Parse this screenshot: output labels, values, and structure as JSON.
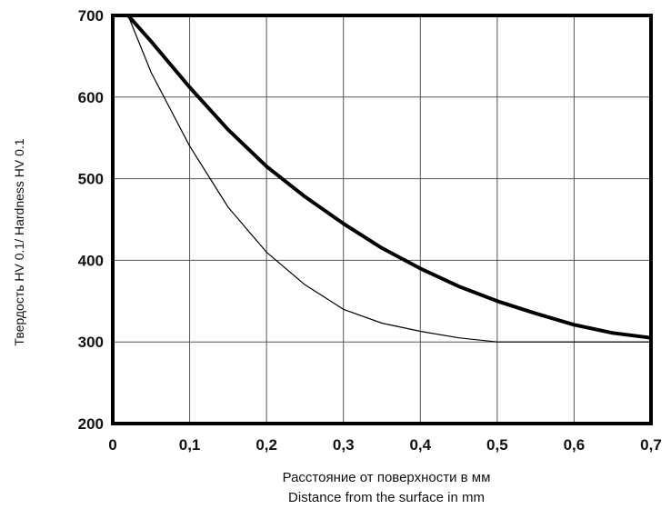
{
  "chart_data": {
    "type": "line",
    "xlabel_ru": "Расстояние от поверхности в мм",
    "xlabel_en": "Distance from the surface in mm",
    "ylabel": "Твердость HV 0.1/  Hardness HV 0.1",
    "xlim": [
      0,
      0.7
    ],
    "ylim": [
      200,
      700
    ],
    "x_ticks": [
      "0",
      "0,1",
      "0,2",
      "0,3",
      "0,4",
      "0,5",
      "0,6",
      "0,7"
    ],
    "y_ticks": [
      "200",
      "300",
      "400",
      "500",
      "600",
      "700"
    ],
    "x_tick_values": [
      0,
      0.1,
      0.2,
      0.3,
      0.4,
      0.5,
      0.6,
      0.7
    ],
    "y_tick_values": [
      200,
      300,
      400,
      500,
      600,
      700
    ],
    "grid": true,
    "series": [
      {
        "line_weight": "thick",
        "color": "#000000",
        "points": [
          [
            0.02,
            700
          ],
          [
            0.05,
            668
          ],
          [
            0.1,
            612
          ],
          [
            0.15,
            560
          ],
          [
            0.2,
            515
          ],
          [
            0.25,
            478
          ],
          [
            0.3,
            445
          ],
          [
            0.35,
            415
          ],
          [
            0.4,
            390
          ],
          [
            0.45,
            368
          ],
          [
            0.5,
            350
          ],
          [
            0.55,
            335
          ],
          [
            0.6,
            321
          ],
          [
            0.65,
            311
          ],
          [
            0.7,
            305
          ]
        ]
      },
      {
        "line_weight": "thin",
        "color": "#000000",
        "points": [
          [
            0.02,
            700
          ],
          [
            0.05,
            630
          ],
          [
            0.1,
            540
          ],
          [
            0.15,
            465
          ],
          [
            0.2,
            410
          ],
          [
            0.25,
            370
          ],
          [
            0.3,
            340
          ],
          [
            0.35,
            323
          ],
          [
            0.4,
            313
          ],
          [
            0.45,
            305
          ],
          [
            0.5,
            300
          ],
          [
            0.55,
            300
          ],
          [
            0.6,
            300
          ],
          [
            0.7,
            300
          ]
        ]
      }
    ]
  }
}
